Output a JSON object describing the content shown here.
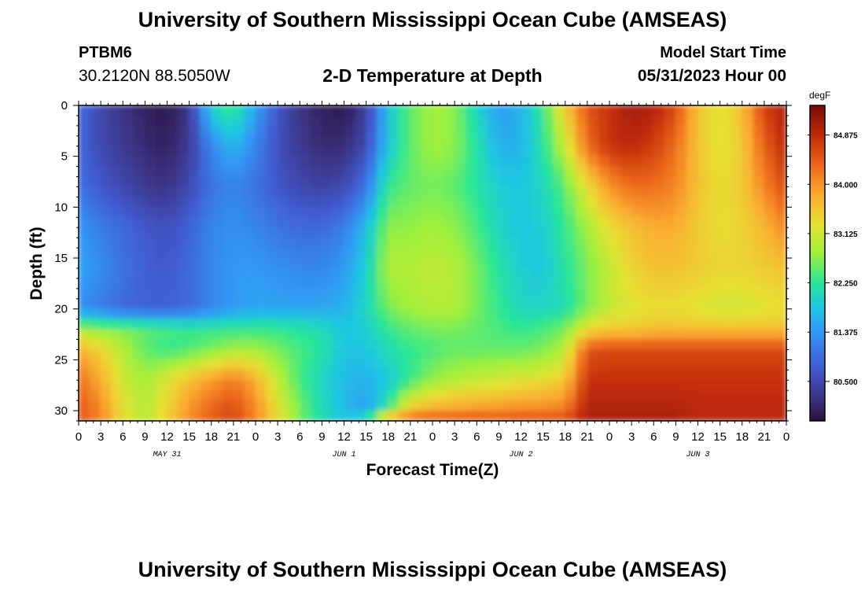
{
  "header": {
    "main_title": "University of Southern Mississippi Ocean Cube (AMSEAS)",
    "station_id": "PTBM6",
    "station_coords": "30.2120N  88.5050W",
    "chart_title": "2-D Temperature at Depth",
    "model_start_label": "Model Start Time",
    "model_start_value": "05/31/2023 Hour 00"
  },
  "footer": {
    "repeated_title": "University of Southern Mississippi Ocean Cube (AMSEAS)"
  },
  "chart_data": {
    "type": "heatmap",
    "title": "2-D Temperature at Depth",
    "xlabel": "Forecast Time(Z)",
    "ylabel": "Depth (ft)",
    "colorbar_unit": "degF",
    "x_tick_labels": [
      "0",
      "3",
      "6",
      "9",
      "12",
      "15",
      "18",
      "21",
      "0",
      "3",
      "6",
      "9",
      "12",
      "15",
      "18",
      "21",
      "0",
      "3",
      "6",
      "9",
      "12",
      "15",
      "18",
      "21",
      "0",
      "3",
      "6",
      "9",
      "12",
      "15",
      "18",
      "21",
      "0"
    ],
    "date_labels": [
      "MAY 31",
      "JUN 1",
      "JUN 2",
      "JUN 3"
    ],
    "y_ticks": [
      0,
      5,
      10,
      15,
      20,
      25,
      30
    ],
    "ylim": [
      31,
      0
    ],
    "xlim_hours": [
      0,
      96
    ],
    "colorbar_ticks": [
      "84.875",
      "84.000",
      "83.125",
      "82.250",
      "81.375",
      "80.500"
    ],
    "colorbar_range": [
      79.8,
      85.4
    ],
    "value_grid": {
      "x_hours": [
        0,
        3,
        6,
        9,
        12,
        15,
        18,
        21,
        24,
        27,
        30,
        33,
        36,
        39,
        42,
        45,
        48,
        51,
        54,
        57,
        60,
        63,
        66,
        69,
        72,
        75,
        78,
        81,
        84,
        87,
        90,
        93,
        96
      ],
      "depths_ft": [
        0,
        4,
        8,
        12,
        16,
        20,
        22,
        24,
        27,
        30,
        31
      ],
      "values_degF": [
        [
          80.9,
          80.5,
          80.2,
          80.0,
          79.9,
          80.2,
          82.0,
          82.4,
          81.5,
          80.7,
          80.2,
          80.0,
          79.9,
          80.3,
          81.8,
          82.5,
          82.8,
          82.7,
          82.0,
          81.4,
          81.6,
          82.3,
          83.5,
          84.5,
          84.8,
          85.1,
          85.0,
          84.6,
          83.6,
          83.2,
          83.6,
          84.7,
          85.0
        ],
        [
          80.9,
          80.5,
          80.3,
          80.1,
          80.0,
          80.3,
          81.2,
          81.7,
          81.2,
          80.6,
          80.3,
          80.1,
          80.1,
          80.5,
          81.8,
          82.5,
          82.8,
          82.7,
          82.2,
          81.6,
          81.6,
          82.2,
          83.0,
          84.3,
          84.8,
          84.9,
          84.7,
          84.3,
          83.6,
          83.2,
          83.5,
          84.4,
          84.9
        ],
        [
          81.0,
          80.7,
          80.5,
          80.3,
          80.2,
          80.5,
          81.0,
          81.2,
          81.0,
          80.7,
          80.5,
          80.4,
          80.5,
          81.0,
          82.3,
          82.5,
          82.6,
          82.5,
          82.2,
          81.9,
          81.8,
          82.0,
          82.5,
          83.3,
          84.0,
          84.3,
          84.3,
          84.1,
          83.6,
          83.3,
          83.5,
          84.1,
          84.6
        ],
        [
          81.4,
          81.1,
          80.9,
          80.7,
          80.6,
          80.8,
          81.2,
          81.3,
          81.2,
          81.0,
          80.9,
          80.9,
          81.1,
          81.7,
          82.7,
          82.7,
          82.8,
          82.7,
          82.4,
          82.0,
          81.8,
          81.9,
          82.3,
          82.8,
          83.3,
          83.6,
          83.8,
          83.8,
          83.5,
          83.3,
          83.4,
          83.7,
          84.1
        ],
        [
          81.5,
          81.3,
          81.0,
          80.8,
          80.7,
          80.9,
          81.2,
          81.4,
          81.4,
          81.3,
          81.2,
          81.2,
          81.4,
          81.9,
          82.9,
          82.9,
          83.0,
          82.9,
          82.6,
          82.2,
          81.9,
          81.8,
          82.2,
          82.6,
          83.0,
          83.4,
          83.6,
          83.6,
          83.5,
          83.4,
          83.4,
          83.5,
          83.6
        ],
        [
          81.3,
          81.1,
          80.9,
          80.8,
          80.8,
          80.9,
          81.2,
          81.4,
          81.5,
          81.5,
          81.5,
          81.5,
          81.6,
          82.0,
          82.6,
          82.8,
          82.9,
          82.9,
          82.6,
          82.3,
          82.0,
          82.0,
          82.1,
          82.6,
          83.0,
          83.2,
          83.3,
          83.3,
          83.2,
          83.1,
          83.1,
          83.2,
          83.3
        ],
        [
          82.8,
          82.7,
          82.6,
          82.5,
          82.4,
          82.3,
          82.3,
          82.3,
          82.3,
          82.3,
          82.2,
          82.1,
          81.8,
          81.9,
          82.3,
          82.5,
          82.6,
          82.6,
          82.5,
          82.4,
          82.3,
          82.4,
          82.6,
          83.3,
          83.5,
          83.5,
          83.6,
          83.6,
          83.6,
          83.6,
          83.6,
          83.6,
          83.6
        ],
        [
          83.8,
          83.4,
          82.9,
          82.5,
          82.3,
          82.4,
          82.6,
          82.8,
          82.8,
          82.6,
          82.4,
          82.2,
          81.8,
          81.8,
          82.1,
          82.3,
          82.4,
          82.5,
          82.5,
          82.5,
          82.5,
          82.6,
          82.9,
          84.5,
          84.6,
          84.6,
          84.6,
          84.6,
          84.6,
          84.6,
          84.6,
          84.6,
          84.6
        ],
        [
          84.3,
          83.8,
          83.1,
          82.8,
          83.2,
          83.6,
          83.9,
          84.2,
          83.8,
          83.0,
          82.4,
          82.0,
          81.7,
          81.6,
          81.8,
          82.3,
          82.7,
          82.9,
          83.0,
          83.1,
          83.2,
          83.3,
          83.5,
          84.8,
          84.8,
          84.8,
          84.8,
          84.8,
          84.8,
          84.8,
          84.8,
          84.8,
          84.8
        ],
        [
          84.5,
          84.1,
          83.3,
          82.9,
          83.4,
          84.0,
          84.4,
          84.6,
          84.1,
          83.3,
          82.6,
          82.1,
          81.7,
          81.4,
          82.3,
          83.6,
          83.8,
          83.9,
          84.0,
          84.0,
          84.1,
          84.1,
          84.2,
          85.0,
          85.0,
          85.0,
          85.0,
          85.0,
          84.9,
          84.9,
          84.9,
          84.9,
          84.9
        ],
        [
          84.5,
          84.1,
          83.3,
          82.9,
          83.4,
          84.0,
          84.4,
          84.6,
          84.1,
          83.3,
          82.6,
          82.1,
          81.8,
          82.3,
          84.3,
          84.5,
          84.6,
          84.6,
          84.6,
          84.6,
          84.6,
          84.6,
          84.6,
          85.0,
          85.0,
          85.0,
          85.0,
          85.0,
          84.9,
          84.9,
          84.9,
          84.9,
          84.9
        ]
      ]
    }
  }
}
